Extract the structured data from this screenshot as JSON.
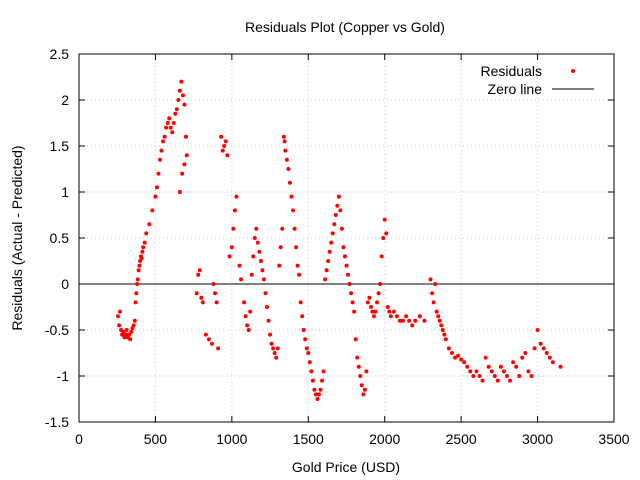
{
  "chart_data": {
    "type": "scatter",
    "title": "Residuals Plot (Copper vs Gold)",
    "xlabel": "Gold Price (USD)",
    "ylabel": "Residuals (Actual - Predicted)",
    "xlim": [
      0,
      3500
    ],
    "ylim": [
      -1.5,
      2.5
    ],
    "xticks": [
      0,
      500,
      1000,
      1500,
      2000,
      2500,
      3000,
      3500
    ],
    "yticks": [
      -1.5,
      -1,
      -0.5,
      0,
      0.5,
      1,
      1.5,
      2,
      2.5
    ],
    "xtick_labels": [
      "0",
      "500",
      "1000",
      "1500",
      "2000",
      "2500",
      "3000",
      "3500"
    ],
    "ytick_labels": [
      "-1.5",
      "-1",
      "-0.5",
      "0",
      "0.5",
      "1",
      "1.5",
      "2",
      "2.5"
    ],
    "grid": true,
    "legend_position": "top-right",
    "colors": {
      "points": "#ff0000",
      "zero_line": "#000000"
    },
    "series": [
      {
        "name": "Residuals",
        "kind": "points",
        "points": [
          [
            255,
            -0.35
          ],
          [
            262,
            -0.45
          ],
          [
            268,
            -0.3
          ],
          [
            275,
            -0.5
          ],
          [
            282,
            -0.55
          ],
          [
            290,
            -0.52
          ],
          [
            298,
            -0.58
          ],
          [
            305,
            -0.55
          ],
          [
            312,
            -0.5
          ],
          [
            320,
            -0.58
          ],
          [
            328,
            -0.55
          ],
          [
            335,
            -0.6
          ],
          [
            342,
            -0.52
          ],
          [
            350,
            -0.48
          ],
          [
            358,
            -0.45
          ],
          [
            365,
            -0.4
          ],
          [
            370,
            -0.2
          ],
          [
            375,
            -0.1
          ],
          [
            380,
            0.0
          ],
          [
            385,
            0.05
          ],
          [
            390,
            0.15
          ],
          [
            395,
            0.2
          ],
          [
            400,
            0.25
          ],
          [
            405,
            0.3
          ],
          [
            410,
            0.28
          ],
          [
            415,
            0.35
          ],
          [
            420,
            0.4
          ],
          [
            430,
            0.45
          ],
          [
            440,
            0.55
          ],
          [
            460,
            0.65
          ],
          [
            480,
            0.8
          ],
          [
            500,
            0.95
          ],
          [
            510,
            1.05
          ],
          [
            520,
            1.2
          ],
          [
            530,
            1.35
          ],
          [
            540,
            1.45
          ],
          [
            550,
            1.55
          ],
          [
            560,
            1.6
          ],
          [
            570,
            1.7
          ],
          [
            580,
            1.75
          ],
          [
            590,
            1.8
          ],
          [
            600,
            1.7
          ],
          [
            610,
            1.65
          ],
          [
            620,
            1.75
          ],
          [
            630,
            1.85
          ],
          [
            640,
            1.9
          ],
          [
            650,
            2.0
          ],
          [
            660,
            2.1
          ],
          [
            670,
            2.2
          ],
          [
            680,
            2.05
          ],
          [
            690,
            1.95
          ],
          [
            700,
            1.6
          ],
          [
            705,
            1.4
          ],
          [
            690,
            1.3
          ],
          [
            675,
            1.2
          ],
          [
            660,
            1.0
          ],
          [
            770,
            -0.1
          ],
          [
            780,
            0.1
          ],
          [
            790,
            0.15
          ],
          [
            800,
            -0.15
          ],
          [
            810,
            -0.2
          ],
          [
            830,
            -0.55
          ],
          [
            850,
            -0.6
          ],
          [
            870,
            -0.65
          ],
          [
            880,
            0.0
          ],
          [
            890,
            -0.1
          ],
          [
            900,
            -0.2
          ],
          [
            910,
            -0.7
          ],
          [
            930,
            1.6
          ],
          [
            940,
            1.45
          ],
          [
            950,
            1.5
          ],
          [
            960,
            1.55
          ],
          [
            970,
            1.4
          ],
          [
            985,
            0.3
          ],
          [
            1000,
            0.4
          ],
          [
            1010,
            0.6
          ],
          [
            1020,
            0.8
          ],
          [
            1030,
            0.95
          ],
          [
            1050,
            0.2
          ],
          [
            1060,
            0.05
          ],
          [
            1080,
            -0.2
          ],
          [
            1090,
            -0.35
          ],
          [
            1100,
            -0.45
          ],
          [
            1110,
            -0.5
          ],
          [
            1120,
            -0.3
          ],
          [
            1130,
            0.1
          ],
          [
            1140,
            0.3
          ],
          [
            1150,
            0.5
          ],
          [
            1160,
            0.6
          ],
          [
            1170,
            0.45
          ],
          [
            1180,
            0.35
          ],
          [
            1190,
            0.25
          ],
          [
            1200,
            0.15
          ],
          [
            1210,
            0.05
          ],
          [
            1220,
            -0.1
          ],
          [
            1230,
            -0.25
          ],
          [
            1240,
            -0.4
          ],
          [
            1250,
            -0.55
          ],
          [
            1260,
            -0.65
          ],
          [
            1270,
            -0.7
          ],
          [
            1280,
            -0.75
          ],
          [
            1290,
            -0.8
          ],
          [
            1300,
            -0.7
          ],
          [
            1310,
            0.2
          ],
          [
            1320,
            0.4
          ],
          [
            1330,
            0.6
          ],
          [
            1340,
            1.6
          ],
          [
            1345,
            1.55
          ],
          [
            1350,
            1.45
          ],
          [
            1360,
            1.35
          ],
          [
            1370,
            1.25
          ],
          [
            1380,
            1.1
          ],
          [
            1390,
            0.95
          ],
          [
            1400,
            0.8
          ],
          [
            1410,
            0.6
          ],
          [
            1420,
            0.4
          ],
          [
            1430,
            0.2
          ],
          [
            1440,
            0.1
          ],
          [
            1450,
            -0.2
          ],
          [
            1460,
            -0.35
          ],
          [
            1470,
            -0.5
          ],
          [
            1480,
            -0.6
          ],
          [
            1490,
            -0.7
          ],
          [
            1500,
            -0.75
          ],
          [
            1510,
            -0.85
          ],
          [
            1520,
            -0.95
          ],
          [
            1530,
            -1.05
          ],
          [
            1540,
            -1.15
          ],
          [
            1550,
            -1.2
          ],
          [
            1560,
            -1.25
          ],
          [
            1570,
            -1.2
          ],
          [
            1580,
            -1.15
          ],
          [
            1590,
            -1.05
          ],
          [
            1600,
            -0.95
          ],
          [
            1610,
            0.05
          ],
          [
            1620,
            0.15
          ],
          [
            1630,
            0.25
          ],
          [
            1640,
            0.35
          ],
          [
            1650,
            0.45
          ],
          [
            1660,
            0.55
          ],
          [
            1670,
            0.65
          ],
          [
            1680,
            0.75
          ],
          [
            1690,
            0.85
          ],
          [
            1700,
            0.95
          ],
          [
            1710,
            0.8
          ],
          [
            1720,
            0.6
          ],
          [
            1730,
            0.4
          ],
          [
            1740,
            0.3
          ],
          [
            1750,
            0.2
          ],
          [
            1760,
            0.1
          ],
          [
            1770,
            0.0
          ],
          [
            1780,
            -0.1
          ],
          [
            1790,
            -0.2
          ],
          [
            1800,
            -0.3
          ],
          [
            1810,
            -0.6
          ],
          [
            1820,
            -0.8
          ],
          [
            1830,
            -0.9
          ],
          [
            1840,
            -1.0
          ],
          [
            1850,
            -1.1
          ],
          [
            1860,
            -1.2
          ],
          [
            1870,
            -1.15
          ],
          [
            1880,
            -0.95
          ],
          [
            1890,
            -0.2
          ],
          [
            1900,
            -0.15
          ],
          [
            1910,
            -0.25
          ],
          [
            1920,
            -0.3
          ],
          [
            1930,
            -0.35
          ],
          [
            1940,
            -0.3
          ],
          [
            1950,
            -0.2
          ],
          [
            1960,
            -0.1
          ],
          [
            1970,
            0.0
          ],
          [
            1980,
            0.3
          ],
          [
            1990,
            0.5
          ],
          [
            2000,
            0.7
          ],
          [
            2010,
            0.55
          ],
          [
            2020,
            -0.25
          ],
          [
            2030,
            -0.3
          ],
          [
            2040,
            -0.35
          ],
          [
            2060,
            -0.3
          ],
          [
            2080,
            -0.35
          ],
          [
            2100,
            -0.4
          ],
          [
            2120,
            -0.4
          ],
          [
            2140,
            -0.35
          ],
          [
            2160,
            -0.4
          ],
          [
            2180,
            -0.45
          ],
          [
            2200,
            -0.4
          ],
          [
            2230,
            -0.35
          ],
          [
            2260,
            -0.4
          ],
          [
            2300,
            0.05
          ],
          [
            2310,
            -0.1
          ],
          [
            2320,
            -0.2
          ],
          [
            2330,
            0.0
          ],
          [
            2340,
            -0.3
          ],
          [
            2350,
            -0.35
          ],
          [
            2360,
            -0.4
          ],
          [
            2370,
            -0.45
          ],
          [
            2380,
            -0.5
          ],
          [
            2390,
            -0.55
          ],
          [
            2400,
            -0.6
          ],
          [
            2420,
            -0.7
          ],
          [
            2440,
            -0.75
          ],
          [
            2460,
            -0.8
          ],
          [
            2480,
            -0.78
          ],
          [
            2500,
            -0.82
          ],
          [
            2520,
            -0.85
          ],
          [
            2540,
            -0.9
          ],
          [
            2560,
            -0.95
          ],
          [
            2580,
            -1.0
          ],
          [
            2600,
            -0.95
          ],
          [
            2620,
            -1.0
          ],
          [
            2640,
            -1.05
          ],
          [
            2660,
            -0.8
          ],
          [
            2680,
            -0.9
          ],
          [
            2700,
            -0.95
          ],
          [
            2720,
            -1.0
          ],
          [
            2740,
            -1.05
          ],
          [
            2760,
            -0.9
          ],
          [
            2780,
            -0.95
          ],
          [
            2800,
            -1.0
          ],
          [
            2820,
            -1.05
          ],
          [
            2840,
            -0.85
          ],
          [
            2860,
            -0.9
          ],
          [
            2880,
            -1.0
          ],
          [
            2900,
            -0.8
          ],
          [
            2920,
            -0.75
          ],
          [
            2940,
            -0.95
          ],
          [
            2960,
            -1.0
          ],
          [
            2980,
            -0.7
          ],
          [
            3000,
            -0.5
          ],
          [
            3020,
            -0.65
          ],
          [
            3040,
            -0.7
          ],
          [
            3060,
            -0.75
          ],
          [
            3080,
            -0.8
          ],
          [
            3100,
            -0.85
          ],
          [
            3150,
            -0.9
          ]
        ]
      },
      {
        "name": "Zero line",
        "kind": "line",
        "y": 0
      }
    ]
  }
}
